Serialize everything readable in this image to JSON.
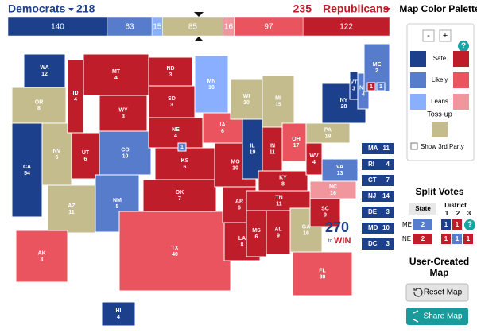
{
  "header": {
    "dem_label": "Democrats",
    "dem_total": 218,
    "rep_total": 235,
    "rep_label": "Republicans",
    "segments": [
      {
        "value": 140,
        "rating": "safe_d"
      },
      {
        "value": 63,
        "rating": "likely_d"
      },
      {
        "value": 15,
        "rating": "leans_d"
      },
      {
        "value": 85,
        "rating": "tossup"
      },
      {
        "value": 16,
        "rating": "leans_r"
      },
      {
        "value": 97,
        "rating": "likely_r"
      },
      {
        "value": 122,
        "rating": "safe_r"
      }
    ]
  },
  "colors": {
    "safe_d": "#1c408c",
    "likely_d": "#577ccc",
    "leans_d": "#8aafff",
    "tossup": "#c5bc8e",
    "leans_r": "#f2969e",
    "likely_r": "#e9545f",
    "safe_r": "#bf1d29"
  },
  "states": [
    {
      "abbr": "WA",
      "votes": 12,
      "rating": "safe_d"
    },
    {
      "abbr": "OR",
      "votes": 8,
      "rating": "tossup"
    },
    {
      "abbr": "CA",
      "votes": 54,
      "rating": "safe_d"
    },
    {
      "abbr": "NV",
      "votes": 6,
      "rating": "tossup"
    },
    {
      "abbr": "ID",
      "votes": 4,
      "rating": "safe_r"
    },
    {
      "abbr": "MT",
      "votes": 4,
      "rating": "safe_r"
    },
    {
      "abbr": "WY",
      "votes": 3,
      "rating": "safe_r"
    },
    {
      "abbr": "UT",
      "votes": 6,
      "rating": "safe_r"
    },
    {
      "abbr": "AZ",
      "votes": 11,
      "rating": "tossup"
    },
    {
      "abbr": "CO",
      "votes": 10,
      "rating": "likely_d"
    },
    {
      "abbr": "NM",
      "votes": 5,
      "rating": "likely_d"
    },
    {
      "abbr": "ND",
      "votes": 3,
      "rating": "safe_r"
    },
    {
      "abbr": "SD",
      "votes": 3,
      "rating": "safe_r"
    },
    {
      "abbr": "NE",
      "votes": 4,
      "rating": "safe_r"
    },
    {
      "abbr": "KS",
      "votes": 6,
      "rating": "safe_r"
    },
    {
      "abbr": "OK",
      "votes": 7,
      "rating": "safe_r"
    },
    {
      "abbr": "TX",
      "votes": 40,
      "rating": "likely_r"
    },
    {
      "abbr": "MN",
      "votes": 10,
      "rating": "leans_d"
    },
    {
      "abbr": "IA",
      "votes": 6,
      "rating": "likely_r"
    },
    {
      "abbr": "MO",
      "votes": 10,
      "rating": "safe_r"
    },
    {
      "abbr": "AR",
      "votes": 6,
      "rating": "safe_r"
    },
    {
      "abbr": "LA",
      "votes": 8,
      "rating": "safe_r"
    },
    {
      "abbr": "WI",
      "votes": 10,
      "rating": "tossup"
    },
    {
      "abbr": "IL",
      "votes": 19,
      "rating": "safe_d"
    },
    {
      "abbr": "MI",
      "votes": 15,
      "rating": "tossup"
    },
    {
      "abbr": "IN",
      "votes": 11,
      "rating": "safe_r"
    },
    {
      "abbr": "OH",
      "votes": 17,
      "rating": "likely_r"
    },
    {
      "abbr": "KY",
      "votes": 8,
      "rating": "safe_r"
    },
    {
      "abbr": "TN",
      "votes": 11,
      "rating": "safe_r"
    },
    {
      "abbr": "MS",
      "votes": 6,
      "rating": "safe_r"
    },
    {
      "abbr": "AL",
      "votes": 9,
      "rating": "safe_r"
    },
    {
      "abbr": "GA",
      "votes": 16,
      "rating": "tossup"
    },
    {
      "abbr": "FL",
      "votes": 30,
      "rating": "likely_r"
    },
    {
      "abbr": "SC",
      "votes": 9,
      "rating": "safe_r"
    },
    {
      "abbr": "NC",
      "votes": 16,
      "rating": "leans_r"
    },
    {
      "abbr": "VA",
      "votes": 13,
      "rating": "likely_d"
    },
    {
      "abbr": "WV",
      "votes": 4,
      "rating": "safe_r"
    },
    {
      "abbr": "PA",
      "votes": 19,
      "rating": "tossup"
    },
    {
      "abbr": "NY",
      "votes": 28,
      "rating": "safe_d"
    },
    {
      "abbr": "VT",
      "votes": 3,
      "rating": "safe_d"
    },
    {
      "abbr": "NH",
      "votes": 4,
      "rating": "likely_d"
    },
    {
      "abbr": "ME",
      "votes": 2,
      "rating": "likely_d"
    },
    {
      "abbr": "AK",
      "votes": 3,
      "rating": "likely_r"
    },
    {
      "abbr": "HI",
      "votes": 4,
      "rating": "safe_d"
    }
  ],
  "map_districts": [
    {
      "votes": 1,
      "rating": "likely_d"
    },
    {
      "votes": 1,
      "rating": "safe_r"
    },
    {
      "votes": 1,
      "rating": "likely_d"
    }
  ],
  "side_states": [
    {
      "abbr": "MA",
      "votes": 11
    },
    {
      "abbr": "RI",
      "votes": 4
    },
    {
      "abbr": "CT",
      "votes": 7
    },
    {
      "abbr": "NJ",
      "votes": 14
    },
    {
      "abbr": "DE",
      "votes": 3
    },
    {
      "abbr": "MD",
      "votes": 10
    },
    {
      "abbr": "DC",
      "votes": 3
    }
  ],
  "logo": {
    "number": "270",
    "small": "to",
    "word": "WIN"
  },
  "palette": {
    "title": "Map Color Palette",
    "minus": "-",
    "plus": "+",
    "help": "?",
    "rows": [
      "Safe",
      "Likely",
      "Leans"
    ],
    "tossup": "Toss-up",
    "third_party": "Show 3rd Party"
  },
  "split_votes": {
    "title": "Split Votes",
    "state_header": "State",
    "district_header": "District",
    "district_numbers": [
      1,
      2,
      3
    ],
    "rows": [
      {
        "state": "ME",
        "cells": [
          {
            "value": 2,
            "rating": "likely_d"
          },
          {
            "value": 1,
            "rating": "safe_d"
          },
          {
            "value": 1,
            "rating": "safe_r"
          }
        ]
      },
      {
        "state": "NE",
        "cells": [
          {
            "value": 2,
            "rating": "safe_r"
          },
          {
            "value": 1,
            "rating": "safe_r"
          },
          {
            "value": 1,
            "rating": "likely_d"
          },
          {
            "value": 1,
            "rating": "safe_r"
          }
        ]
      }
    ]
  },
  "user_map": {
    "title": "User-Created Map",
    "reset": "Reset Map",
    "share": "Share Map"
  }
}
